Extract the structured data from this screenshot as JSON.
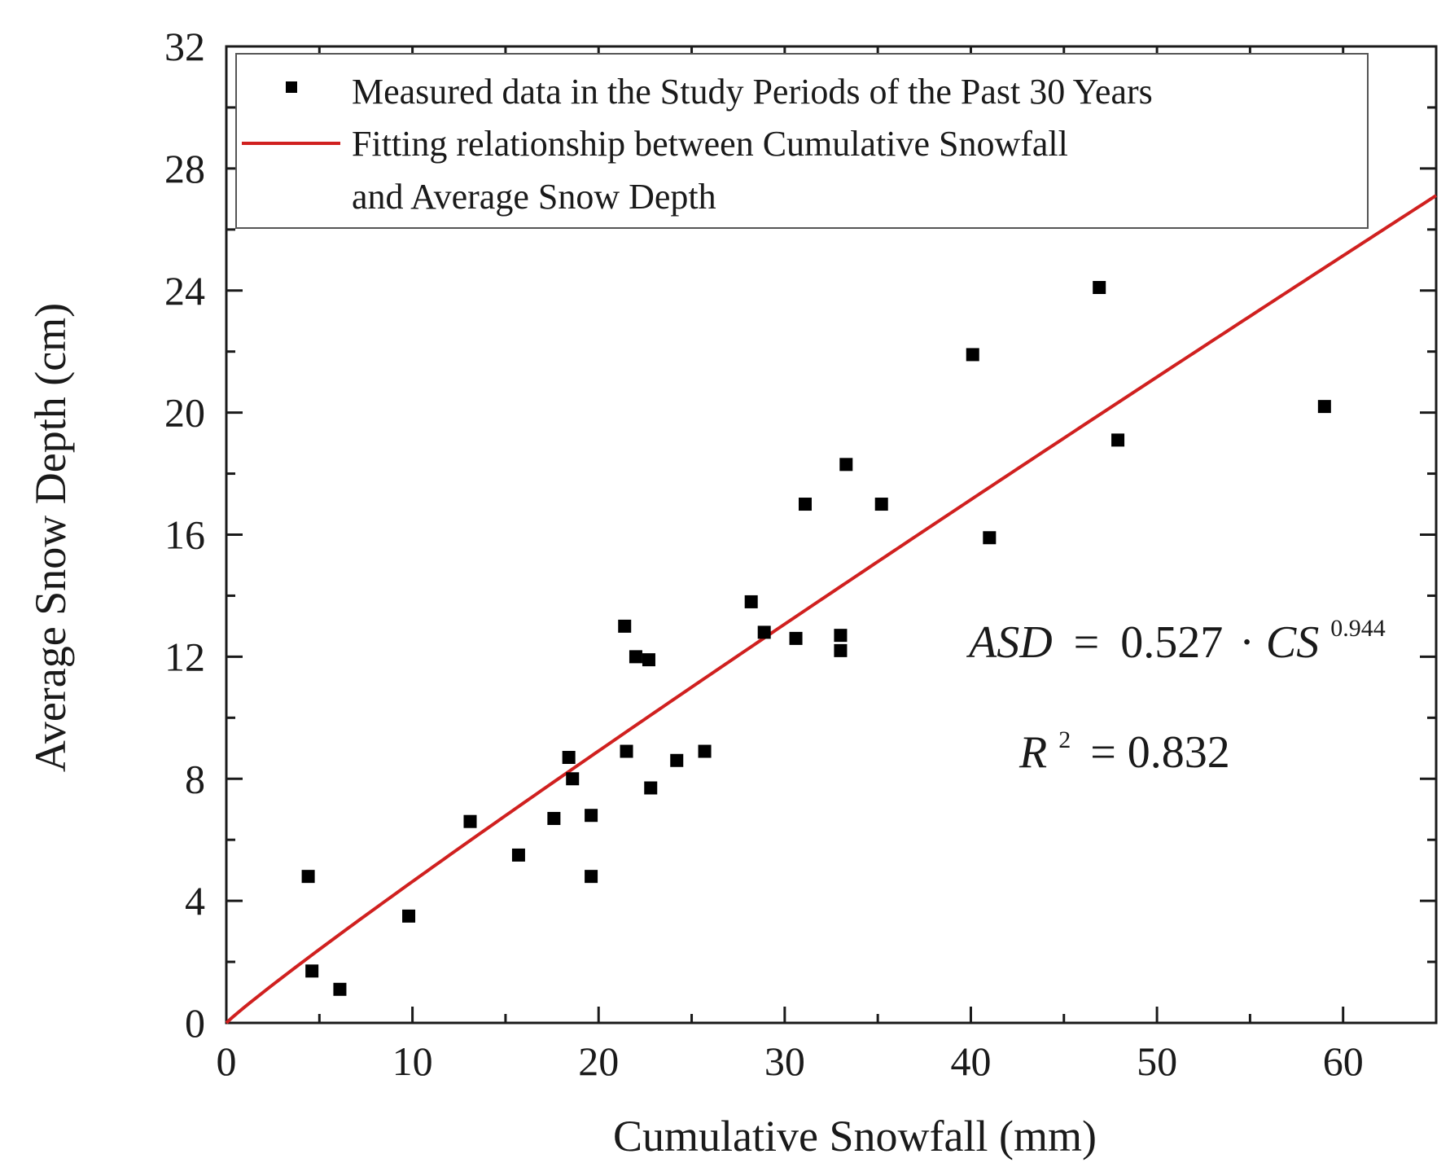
{
  "chart_data": {
    "type": "scatter",
    "title": "",
    "xlabel": "Cumulative Snowfall (mm)",
    "ylabel": "Average Snow Depth (cm)",
    "xlim": [
      0,
      65
    ],
    "ylim": [
      0,
      32
    ],
    "xticks": [
      0,
      10,
      20,
      30,
      40,
      50,
      60
    ],
    "yticks": [
      0,
      4,
      8,
      12,
      16,
      20,
      24,
      28,
      32
    ],
    "xminor_step": 5,
    "yminor_step": 2,
    "series": [
      {
        "name": "Measured data in the Study Periods of the Past 30 Years",
        "kind": "scatter",
        "marker": "square",
        "color": "#000000",
        "points": [
          [
            4.4,
            4.8
          ],
          [
            4.6,
            1.7
          ],
          [
            6.1,
            1.1
          ],
          [
            9.8,
            3.5
          ],
          [
            13.1,
            6.6
          ],
          [
            15.7,
            5.5
          ],
          [
            17.6,
            6.7
          ],
          [
            18.4,
            8.7
          ],
          [
            18.6,
            8.0
          ],
          [
            19.6,
            6.8
          ],
          [
            19.6,
            4.8
          ],
          [
            21.4,
            13.0
          ],
          [
            21.5,
            8.9
          ],
          [
            22.0,
            12.0
          ],
          [
            22.7,
            11.9
          ],
          [
            22.8,
            7.7
          ],
          [
            24.2,
            8.6
          ],
          [
            25.7,
            8.9
          ],
          [
            28.2,
            13.8
          ],
          [
            28.9,
            12.8
          ],
          [
            30.6,
            12.6
          ],
          [
            31.1,
            17.0
          ],
          [
            33.0,
            12.7
          ],
          [
            33.0,
            12.2
          ],
          [
            33.3,
            18.3
          ],
          [
            35.2,
            17.0
          ],
          [
            40.1,
            21.9
          ],
          [
            41.0,
            15.9
          ],
          [
            46.9,
            24.1
          ],
          [
            47.9,
            19.1
          ],
          [
            59.0,
            20.2
          ]
        ]
      },
      {
        "name": "Fitting relationship between Cumulative Snowfall and Average Snow Depth",
        "legend_lines": [
          "Fitting relationship between Cumulative Snowfall",
          "and Average Snow Depth"
        ],
        "kind": "line",
        "color": "#d0201f",
        "model": {
          "coefficient": 0.527,
          "exponent": 0.944
        }
      }
    ],
    "legend_position": "top-left",
    "annotations": {
      "equation_lhs": "ASD",
      "equation_eq": "=",
      "equation_coef": "0.527",
      "equation_dot": "·",
      "equation_var": "CS",
      "equation_exp": "0.944",
      "r2_var": "R",
      "r2_sup": "2",
      "r2_rest": "= 0.832"
    }
  }
}
